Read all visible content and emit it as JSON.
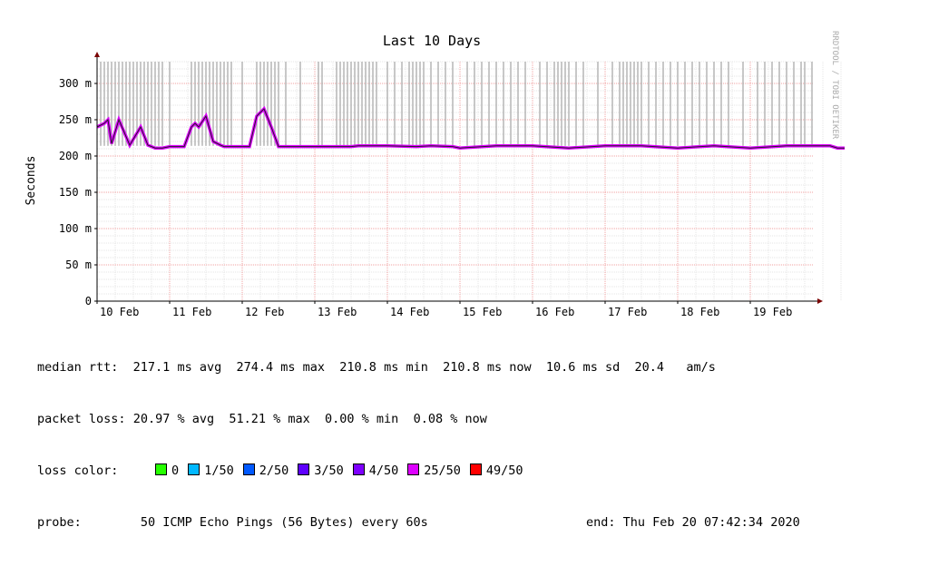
{
  "chart_data": {
    "type": "line",
    "title": "Last 10 Days",
    "ylabel": "Seconds",
    "watermark": "RRDTOOL / TOBI OETIKER",
    "ylim": [
      0,
      0.33
    ],
    "y_ticks": [
      {
        "value": 0,
        "label": "0"
      },
      {
        "value": 0.05,
        "label": "50 m"
      },
      {
        "value": 0.1,
        "label": "100 m"
      },
      {
        "value": 0.15,
        "label": "150 m"
      },
      {
        "value": 0.2,
        "label": "200 m"
      },
      {
        "value": 0.25,
        "label": "250 m"
      },
      {
        "value": 0.3,
        "label": "300 m"
      }
    ],
    "x_ticks": [
      "10 Feb",
      "11 Feb",
      "12 Feb",
      "13 Feb",
      "14 Feb",
      "15 Feb",
      "16 Feb",
      "17 Feb",
      "18 Feb",
      "19 Feb"
    ],
    "x_range_days": [
      0,
      10.4
    ],
    "grid": true,
    "series": [
      {
        "name": "median rtt",
        "x_days": [
          0.0,
          0.1,
          0.15,
          0.2,
          0.3,
          0.45,
          0.6,
          0.7,
          0.8,
          0.9,
          1.0,
          1.2,
          1.3,
          1.35,
          1.4,
          1.5,
          1.6,
          1.7,
          1.75,
          1.85,
          2.0,
          2.1,
          2.2,
          2.3,
          2.4,
          2.5,
          2.6,
          2.8,
          3.0,
          3.2,
          3.35,
          3.5,
          3.6,
          4.0,
          4.4,
          4.6,
          4.9,
          5.0,
          5.5,
          6.0,
          6.5,
          7.0,
          7.5,
          8.0,
          8.5,
          9.0,
          9.5,
          10.0,
          10.1,
          10.2,
          10.3
        ],
        "y": [
          0.24,
          0.245,
          0.25,
          0.217,
          0.25,
          0.215,
          0.24,
          0.215,
          0.211,
          0.211,
          0.213,
          0.213,
          0.24,
          0.245,
          0.24,
          0.255,
          0.22,
          0.215,
          0.213,
          0.213,
          0.213,
          0.213,
          0.255,
          0.265,
          0.24,
          0.213,
          0.213,
          0.213,
          0.213,
          0.213,
          0.213,
          0.213,
          0.214,
          0.214,
          0.213,
          0.214,
          0.213,
          0.211,
          0.214,
          0.214,
          0.211,
          0.214,
          0.214,
          0.211,
          0.214,
          0.211,
          0.214,
          0.214,
          0.214,
          0.211,
          0.211
        ]
      }
    ],
    "spikes_days": [
      0.05,
      0.1,
      0.15,
      0.2,
      0.25,
      0.3,
      0.35,
      0.4,
      0.45,
      0.5,
      0.55,
      0.6,
      0.65,
      0.7,
      0.75,
      0.8,
      0.85,
      0.9,
      1.0,
      1.3,
      1.35,
      1.4,
      1.45,
      1.5,
      1.55,
      1.6,
      1.65,
      1.7,
      1.75,
      1.8,
      1.85,
      2.0,
      2.2,
      2.25,
      2.3,
      2.35,
      2.4,
      2.45,
      2.5,
      2.6,
      2.8,
      3.05,
      3.1,
      3.3,
      3.35,
      3.4,
      3.45,
      3.5,
      3.55,
      3.6,
      3.65,
      3.7,
      3.75,
      3.8,
      3.85,
      4.0,
      4.1,
      4.2,
      4.3,
      4.35,
      4.4,
      4.45,
      4.5,
      4.6,
      4.7,
      4.8,
      4.9,
      5.1,
      5.2,
      5.3,
      5.4,
      5.5,
      5.6,
      5.7,
      5.8,
      5.9,
      6.1,
      6.2,
      6.3,
      6.35,
      6.4,
      6.45,
      6.5,
      6.6,
      6.7,
      6.9,
      7.1,
      7.2,
      7.25,
      7.3,
      7.35,
      7.4,
      7.45,
      7.5,
      7.6,
      7.7,
      7.8,
      7.9,
      8.0,
      8.1,
      8.2,
      8.3,
      8.4,
      8.5,
      8.6,
      8.7,
      8.9,
      9.1,
      9.2,
      9.3,
      9.4,
      9.5,
      9.6,
      9.7,
      9.75,
      9.85
    ]
  },
  "stats": {
    "median_rtt_label": "median rtt:",
    "median_rtt_avg": "217.1 ms avg",
    "median_rtt_max": "274.4 ms max",
    "median_rtt_min": "210.8 ms min",
    "median_rtt_now": "210.8 ms now",
    "median_rtt_sd": "10.6 ms sd",
    "median_rtt_ams": "20.4",
    "median_rtt_ams_unit": "am/s",
    "packet_loss_label": "packet loss:",
    "packet_loss_avg": "20.97 % avg",
    "packet_loss_max": "51.21 % max",
    "packet_loss_min": "0.00 % min",
    "packet_loss_now": "0.08 % now"
  },
  "loss_color": {
    "label": "loss color:",
    "items": [
      {
        "label": "0",
        "color": "#26ff00"
      },
      {
        "label": "1/50",
        "color": "#00b8ff"
      },
      {
        "label": "2/50",
        "color": "#0059ff"
      },
      {
        "label": "3/50",
        "color": "#5e00ff"
      },
      {
        "label": "4/50",
        "color": "#7e00ff"
      },
      {
        "label": "25/50",
        "color": "#dd00ff"
      },
      {
        "label": "49/50",
        "color": "#ff0000"
      }
    ]
  },
  "probe": {
    "label": "probe:",
    "value": "50 ICMP Echo Pings (56 Bytes) every 60s",
    "end": "end: Thu Feb 20 07:42:34 2020"
  }
}
